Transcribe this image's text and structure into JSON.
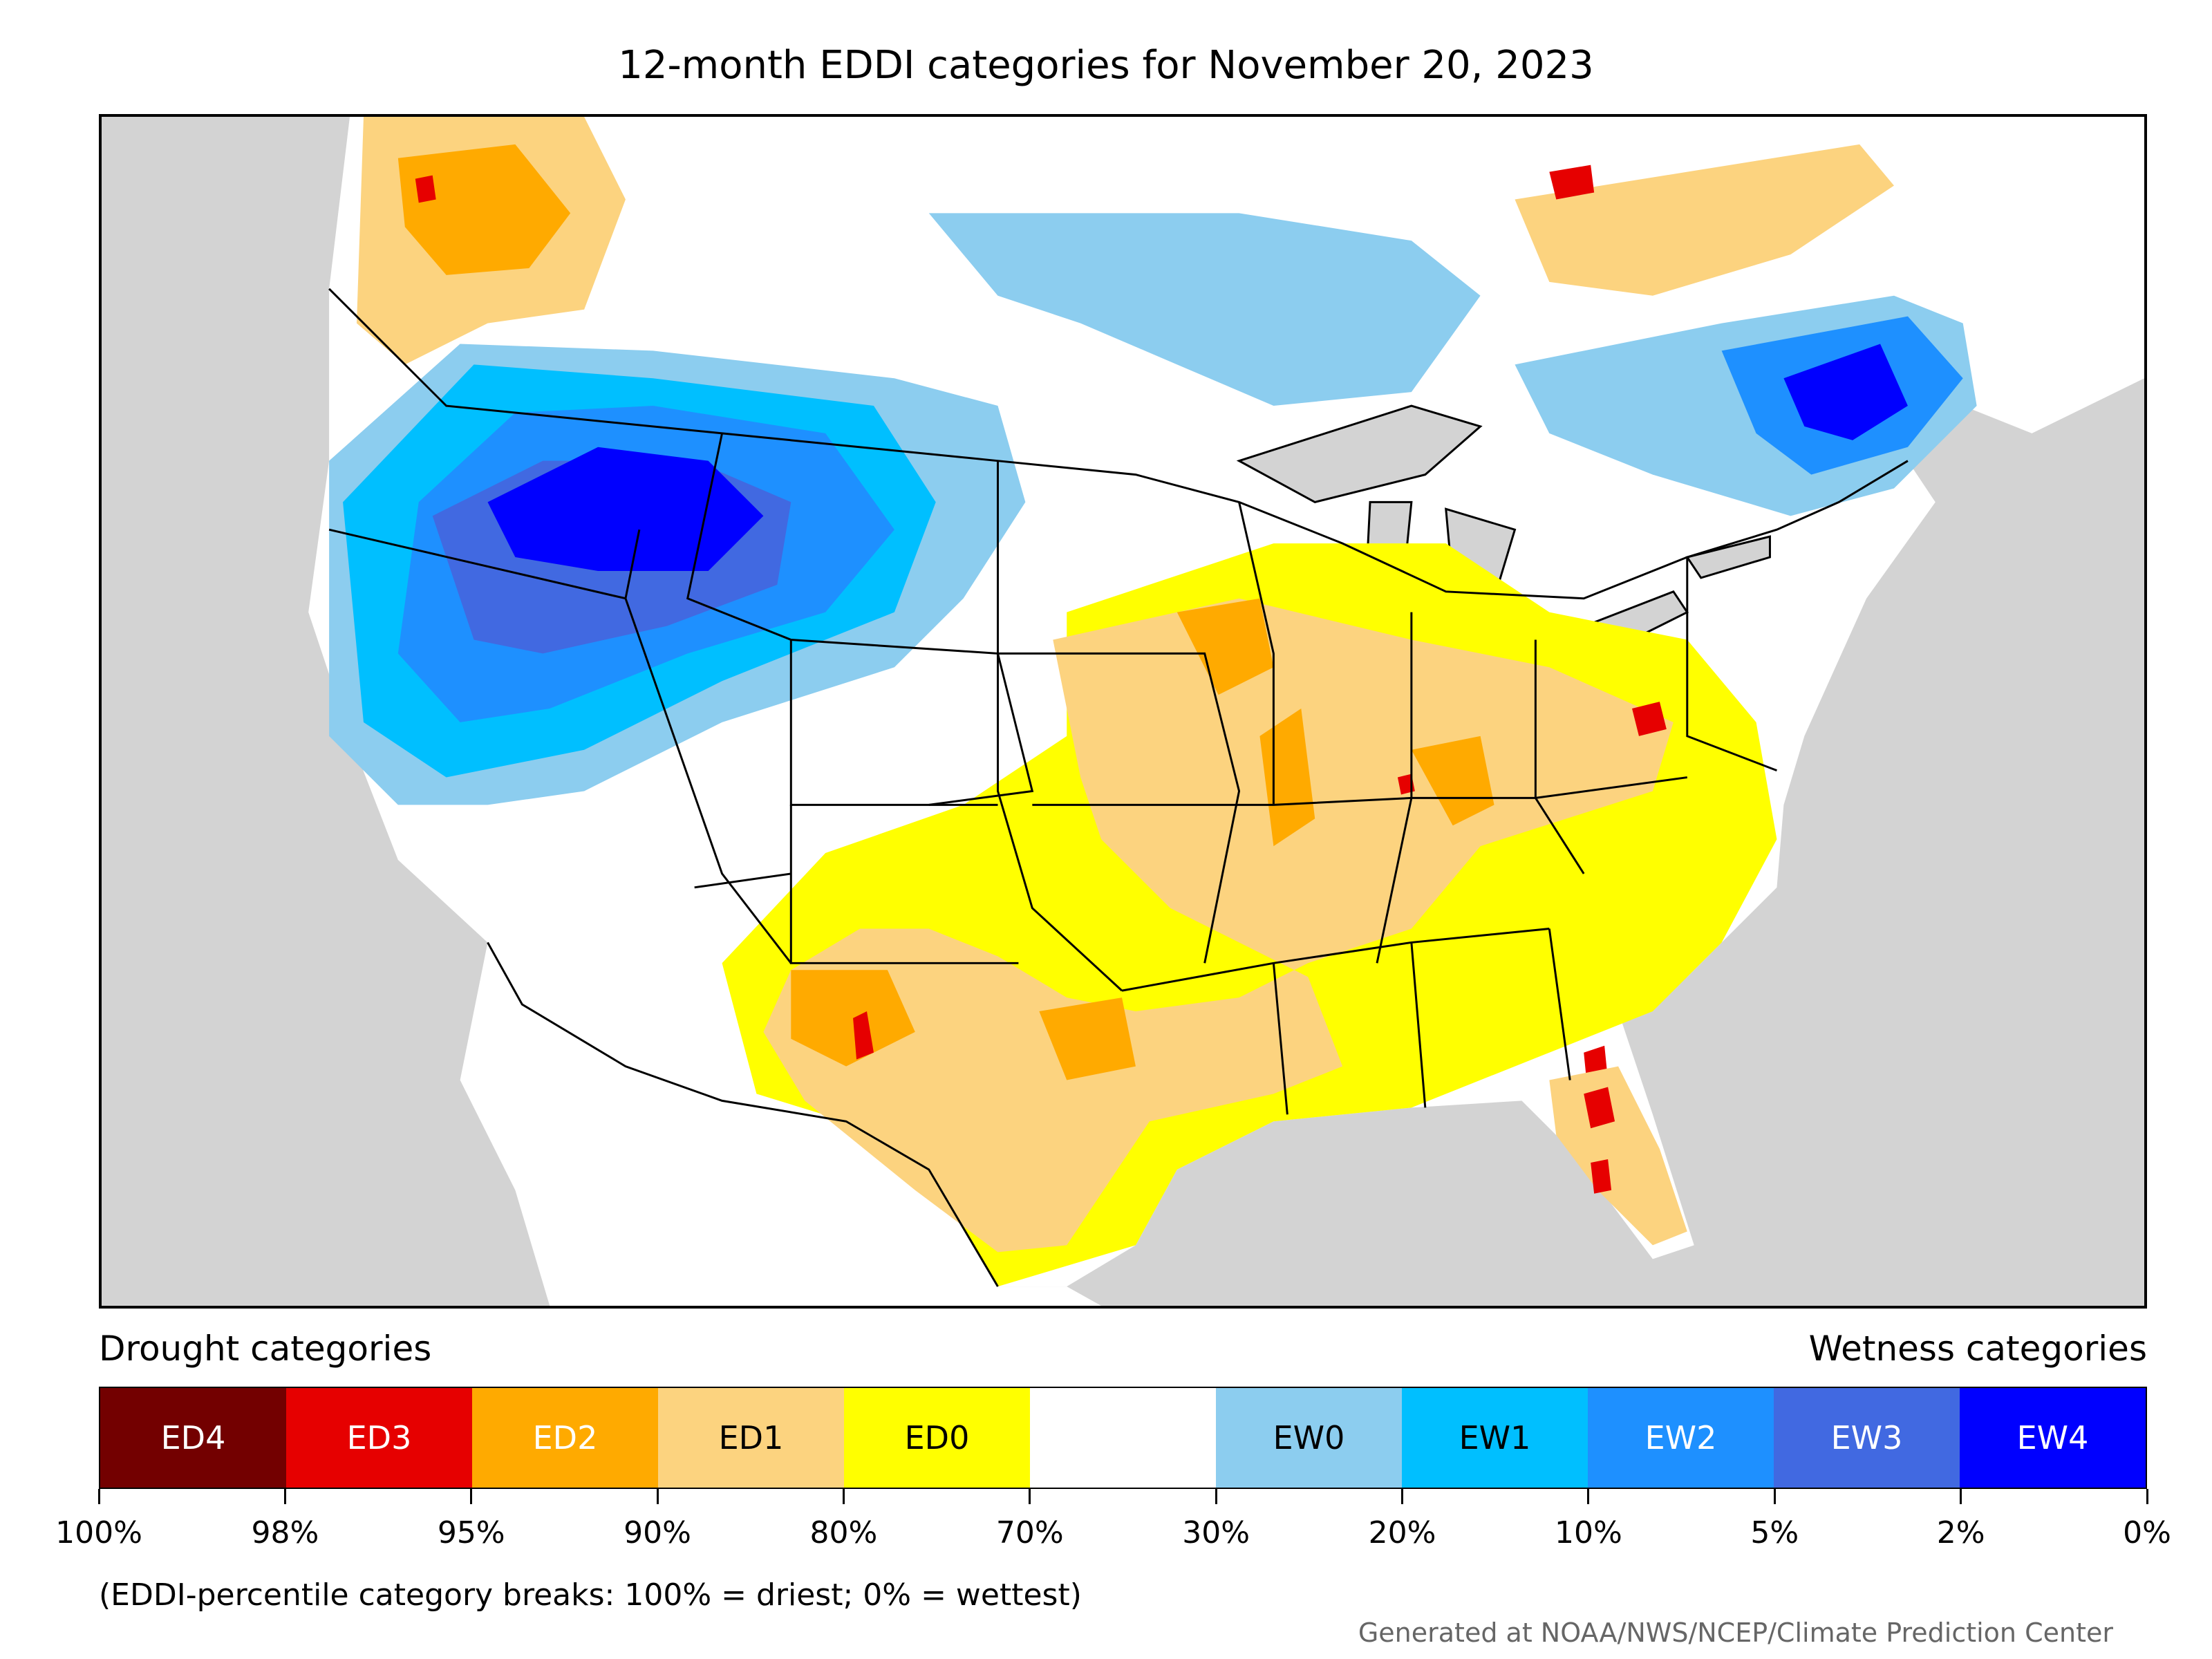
{
  "title": "12-month EDDI categories for November 20, 2023",
  "legend": {
    "drought_label": "Drought categories",
    "wetness_label": "Wetness categories",
    "categories": [
      {
        "label": "ED4",
        "color": "#730000",
        "text_color": "#ffffff"
      },
      {
        "label": "ED3",
        "color": "#e60000",
        "text_color": "#ffffff"
      },
      {
        "label": "ED2",
        "color": "#ffaa00",
        "text_color": "#ffffff"
      },
      {
        "label": "ED1",
        "color": "#fcd37f",
        "text_color": "#000000"
      },
      {
        "label": "ED0",
        "color": "#ffff00",
        "text_color": "#000000"
      },
      {
        "label": "",
        "color": "#ffffff",
        "text_color": "#000000"
      },
      {
        "label": "EW0",
        "color": "#8ccdef",
        "text_color": "#000000"
      },
      {
        "label": "EW1",
        "color": "#00bfff",
        "text_color": "#000000"
      },
      {
        "label": "EW2",
        "color": "#1e90ff",
        "text_color": "#ffffff"
      },
      {
        "label": "EW3",
        "color": "#4169e1",
        "text_color": "#ffffff"
      },
      {
        "label": "EW4",
        "color": "#0000ff",
        "text_color": "#ffffff"
      }
    ],
    "ticks": [
      "100%",
      "98%",
      "95%",
      "90%",
      "80%",
      "70%",
      "30%",
      "20%",
      "10%",
      "5%",
      "2%",
      "0%"
    ]
  },
  "note": "(EDDI-percentile category breaks: 100% = driest; 0% = wettest)",
  "credit": "Generated at NOAA/NWS/NCEP/Climate Prediction Center",
  "map_colors": {
    "ocean": "#d3d3d3",
    "land": "#ffffff",
    "lakes": "#d3d3d3",
    "borders": "#000000"
  }
}
